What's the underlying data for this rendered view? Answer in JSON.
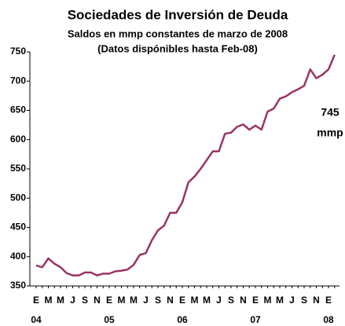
{
  "chart_data": {
    "type": "line",
    "title": "Sociedades de Inversión de Deuda",
    "subtitle": "Saldos en mmp constantes de marzo de 2008",
    "subtitle2": "(Datos dispónibles hasta Feb-08)",
    "categories": [
      "E",
      null,
      "M",
      null,
      "M",
      null,
      "J",
      null,
      "S",
      null,
      "N",
      null,
      "E",
      null,
      "M",
      null,
      "M",
      null,
      "J",
      null,
      "S",
      null,
      "N",
      null,
      "E",
      null,
      "M",
      null,
      "M",
      null,
      "J",
      null,
      "S",
      null,
      "N",
      null,
      "E",
      null,
      "M",
      null,
      "M",
      null,
      "J",
      null,
      "S",
      null,
      "N",
      null,
      "E",
      null
    ],
    "years": [
      "04",
      "05",
      "06",
      "07",
      "08"
    ],
    "series": [
      {
        "name": "Saldos",
        "color": "#993366",
        "values": [
          385,
          382,
          397,
          388,
          382,
          372,
          368,
          368,
          373,
          373,
          368,
          371,
          371,
          375,
          376,
          378,
          386,
          403,
          406,
          428,
          445,
          453,
          475,
          475,
          493,
          527,
          537,
          550,
          565,
          580,
          580,
          610,
          612,
          622,
          626,
          617,
          624,
          617,
          648,
          653,
          670,
          674,
          681,
          686,
          692,
          720,
          705,
          711,
          720,
          745
        ]
      }
    ],
    "annotation": "mmp",
    "ylim": [
      350,
      750
    ],
    "yticks": [
      350,
      400,
      450,
      500,
      550,
      600,
      650,
      700,
      750
    ],
    "grid": false
  }
}
